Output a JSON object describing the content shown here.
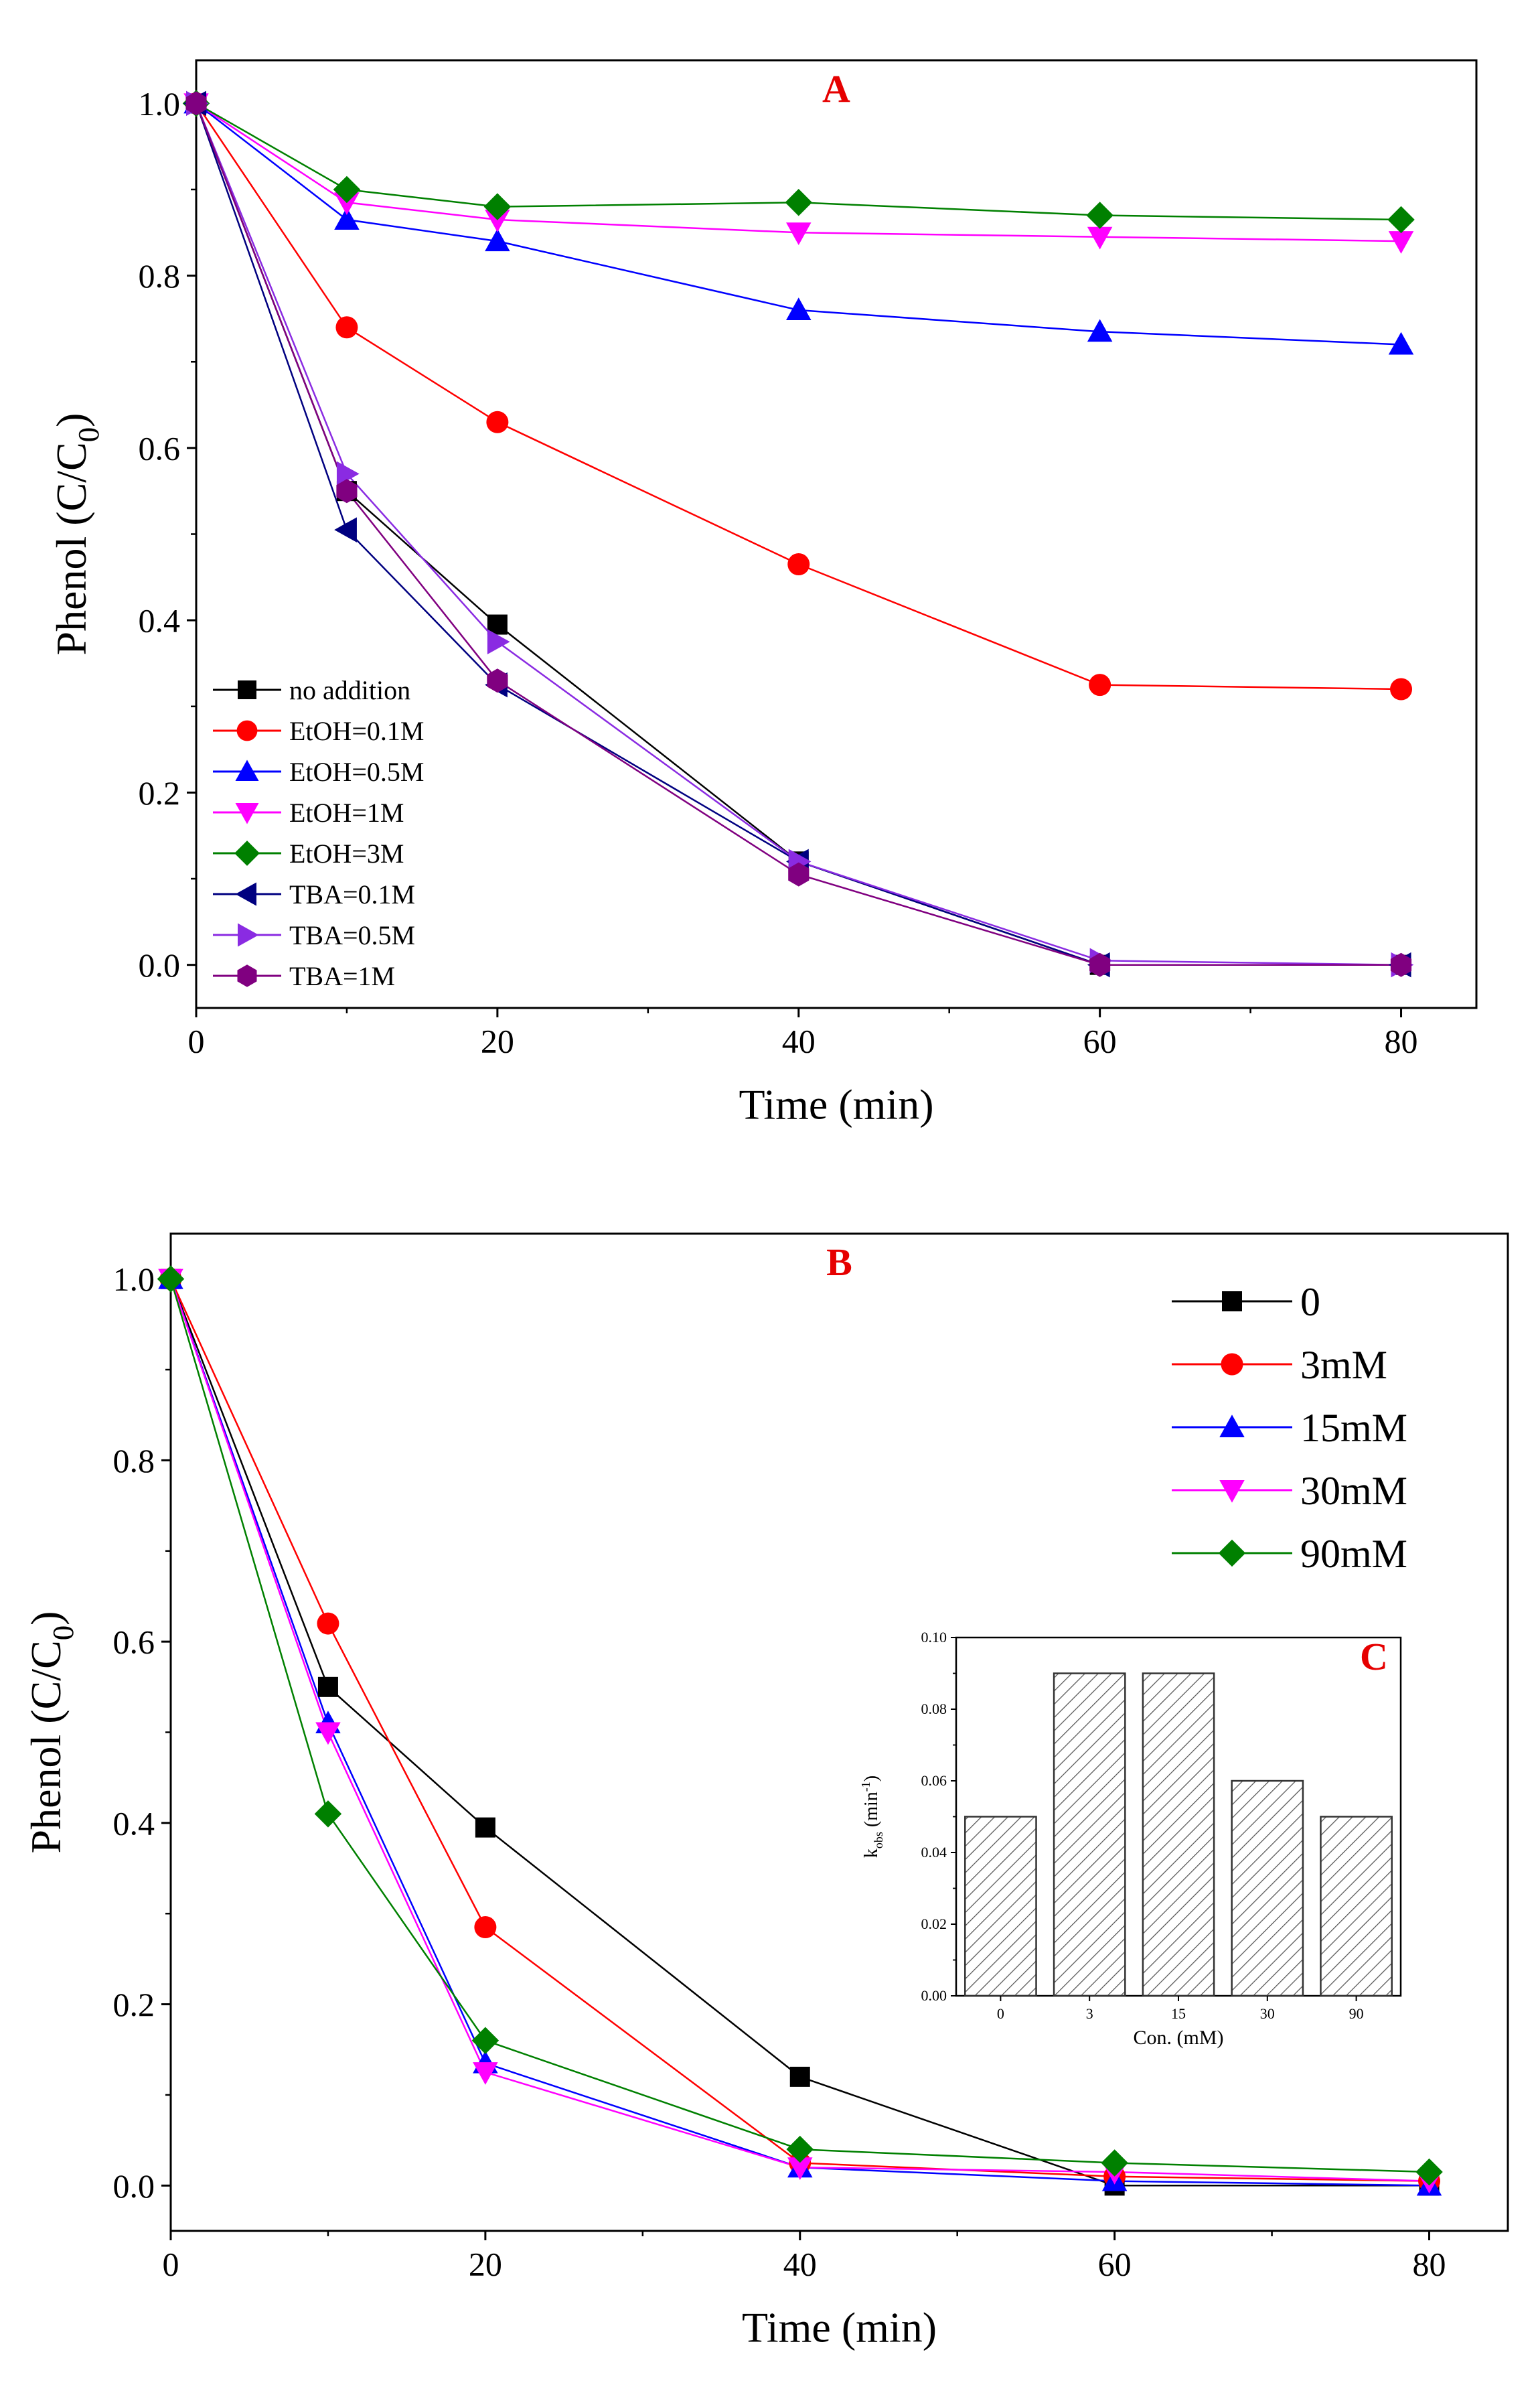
{
  "chart_data": [
    {
      "panel": "A",
      "type": "line",
      "panel_label": "A",
      "xlabel": "Time (min)",
      "ylabel_main": "Phenol (C/C",
      "ylabel_sub": "0",
      "ylabel_close": ")",
      "xlim": [
        0,
        85
      ],
      "ylim": [
        -0.05,
        1.05
      ],
      "xticks": [
        0,
        20,
        40,
        60,
        80
      ],
      "xtick_labels": [
        "0",
        "20",
        "40",
        "60",
        "80"
      ],
      "yticks": [
        0.0,
        0.2,
        0.4,
        0.6,
        0.8,
        1.0
      ],
      "ytick_labels": [
        "0.0",
        "0.2",
        "0.4",
        "0.6",
        "0.8",
        "1.0"
      ],
      "legend_position": "bottom-left",
      "x": [
        0,
        10,
        20,
        40,
        60,
        80
      ],
      "series": [
        {
          "name": "no addition",
          "color": "#000000",
          "marker": "square",
          "values": [
            1.0,
            0.55,
            0.395,
            0.12,
            0.0,
            0.0
          ]
        },
        {
          "name": "EtOH=0.1M",
          "color": "#ff0000",
          "marker": "circle",
          "values": [
            1.0,
            0.74,
            0.63,
            0.465,
            0.325,
            0.32
          ]
        },
        {
          "name": "EtOH=0.5M",
          "color": "#0000ff",
          "marker": "triangle-up",
          "values": [
            1.0,
            0.865,
            0.84,
            0.76,
            0.735,
            0.72
          ]
        },
        {
          "name": "EtOH=1M",
          "color": "#ff00ff",
          "marker": "triangle-down",
          "values": [
            1.0,
            0.885,
            0.865,
            0.85,
            0.845,
            0.84
          ]
        },
        {
          "name": "EtOH=3M",
          "color": "#008000",
          "marker": "diamond",
          "values": [
            1.0,
            0.9,
            0.88,
            0.885,
            0.87,
            0.865
          ]
        },
        {
          "name": "TBA=0.1M",
          "color": "#000080",
          "marker": "triangle-left",
          "values": [
            1.0,
            0.505,
            0.325,
            0.12,
            0.0,
            0.0
          ]
        },
        {
          "name": "TBA=0.5M",
          "color": "#8a2be2",
          "marker": "triangle-right",
          "values": [
            1.0,
            0.57,
            0.375,
            0.12,
            0.005,
            0.0
          ]
        },
        {
          "name": "TBA=1M",
          "color": "#800080",
          "marker": "hexagon",
          "values": [
            1.0,
            0.55,
            0.33,
            0.105,
            0.0,
            0.0
          ]
        }
      ]
    },
    {
      "panel": "B",
      "type": "line",
      "panel_label": "B",
      "xlabel": "Time (min)",
      "ylabel_main": "Phenol (C/C",
      "ylabel_sub": "0",
      "ylabel_close": ")",
      "xlim": [
        0,
        85
      ],
      "ylim": [
        -0.05,
        1.05
      ],
      "xticks": [
        0,
        20,
        40,
        60,
        80
      ],
      "xtick_labels": [
        "0",
        "20",
        "40",
        "60",
        "80"
      ],
      "yticks": [
        0.0,
        0.2,
        0.4,
        0.6,
        0.8,
        1.0
      ],
      "ytick_labels": [
        "0.0",
        "0.2",
        "0.4",
        "0.6",
        "0.8",
        "1.0"
      ],
      "legend_position": "top-right",
      "x": [
        0,
        10,
        20,
        40,
        60,
        80
      ],
      "series": [
        {
          "name": "0",
          "color": "#000000",
          "marker": "square",
          "values": [
            1.0,
            0.55,
            0.395,
            0.12,
            0.0,
            0.0
          ]
        },
        {
          "name": "3mM",
          "color": "#ff0000",
          "marker": "circle",
          "values": [
            1.0,
            0.62,
            0.285,
            0.025,
            0.01,
            0.005
          ]
        },
        {
          "name": "15mM",
          "color": "#0000ff",
          "marker": "triangle-up",
          "values": [
            1.0,
            0.51,
            0.135,
            0.02,
            0.005,
            0.0
          ]
        },
        {
          "name": "30mM",
          "color": "#ff00ff",
          "marker": "triangle-down",
          "values": [
            1.0,
            0.5,
            0.125,
            0.02,
            0.015,
            0.005
          ]
        },
        {
          "name": "90mM",
          "color": "#008000",
          "marker": "diamond",
          "values": [
            1.0,
            0.41,
            0.16,
            0.04,
            0.025,
            0.015
          ]
        }
      ]
    },
    {
      "panel": "C",
      "type": "bar",
      "panel_label": "C",
      "xlabel": "Con. (mM)",
      "ylabel_main": "k",
      "ylabel_sub": "obs",
      "ylabel_mid": " (min",
      "ylabel_sup": "-1",
      "ylabel_close": ")",
      "ylim": [
        0,
        0.1
      ],
      "yticks": [
        0.0,
        0.02,
        0.04,
        0.06,
        0.08,
        0.1
      ],
      "ytick_labels": [
        "0.00",
        "0.02",
        "0.04",
        "0.06",
        "0.08",
        "0.10"
      ],
      "categories": [
        "0",
        "3",
        "15",
        "30",
        "90"
      ],
      "values": [
        0.05,
        0.09,
        0.09,
        0.06,
        0.05
      ]
    }
  ]
}
